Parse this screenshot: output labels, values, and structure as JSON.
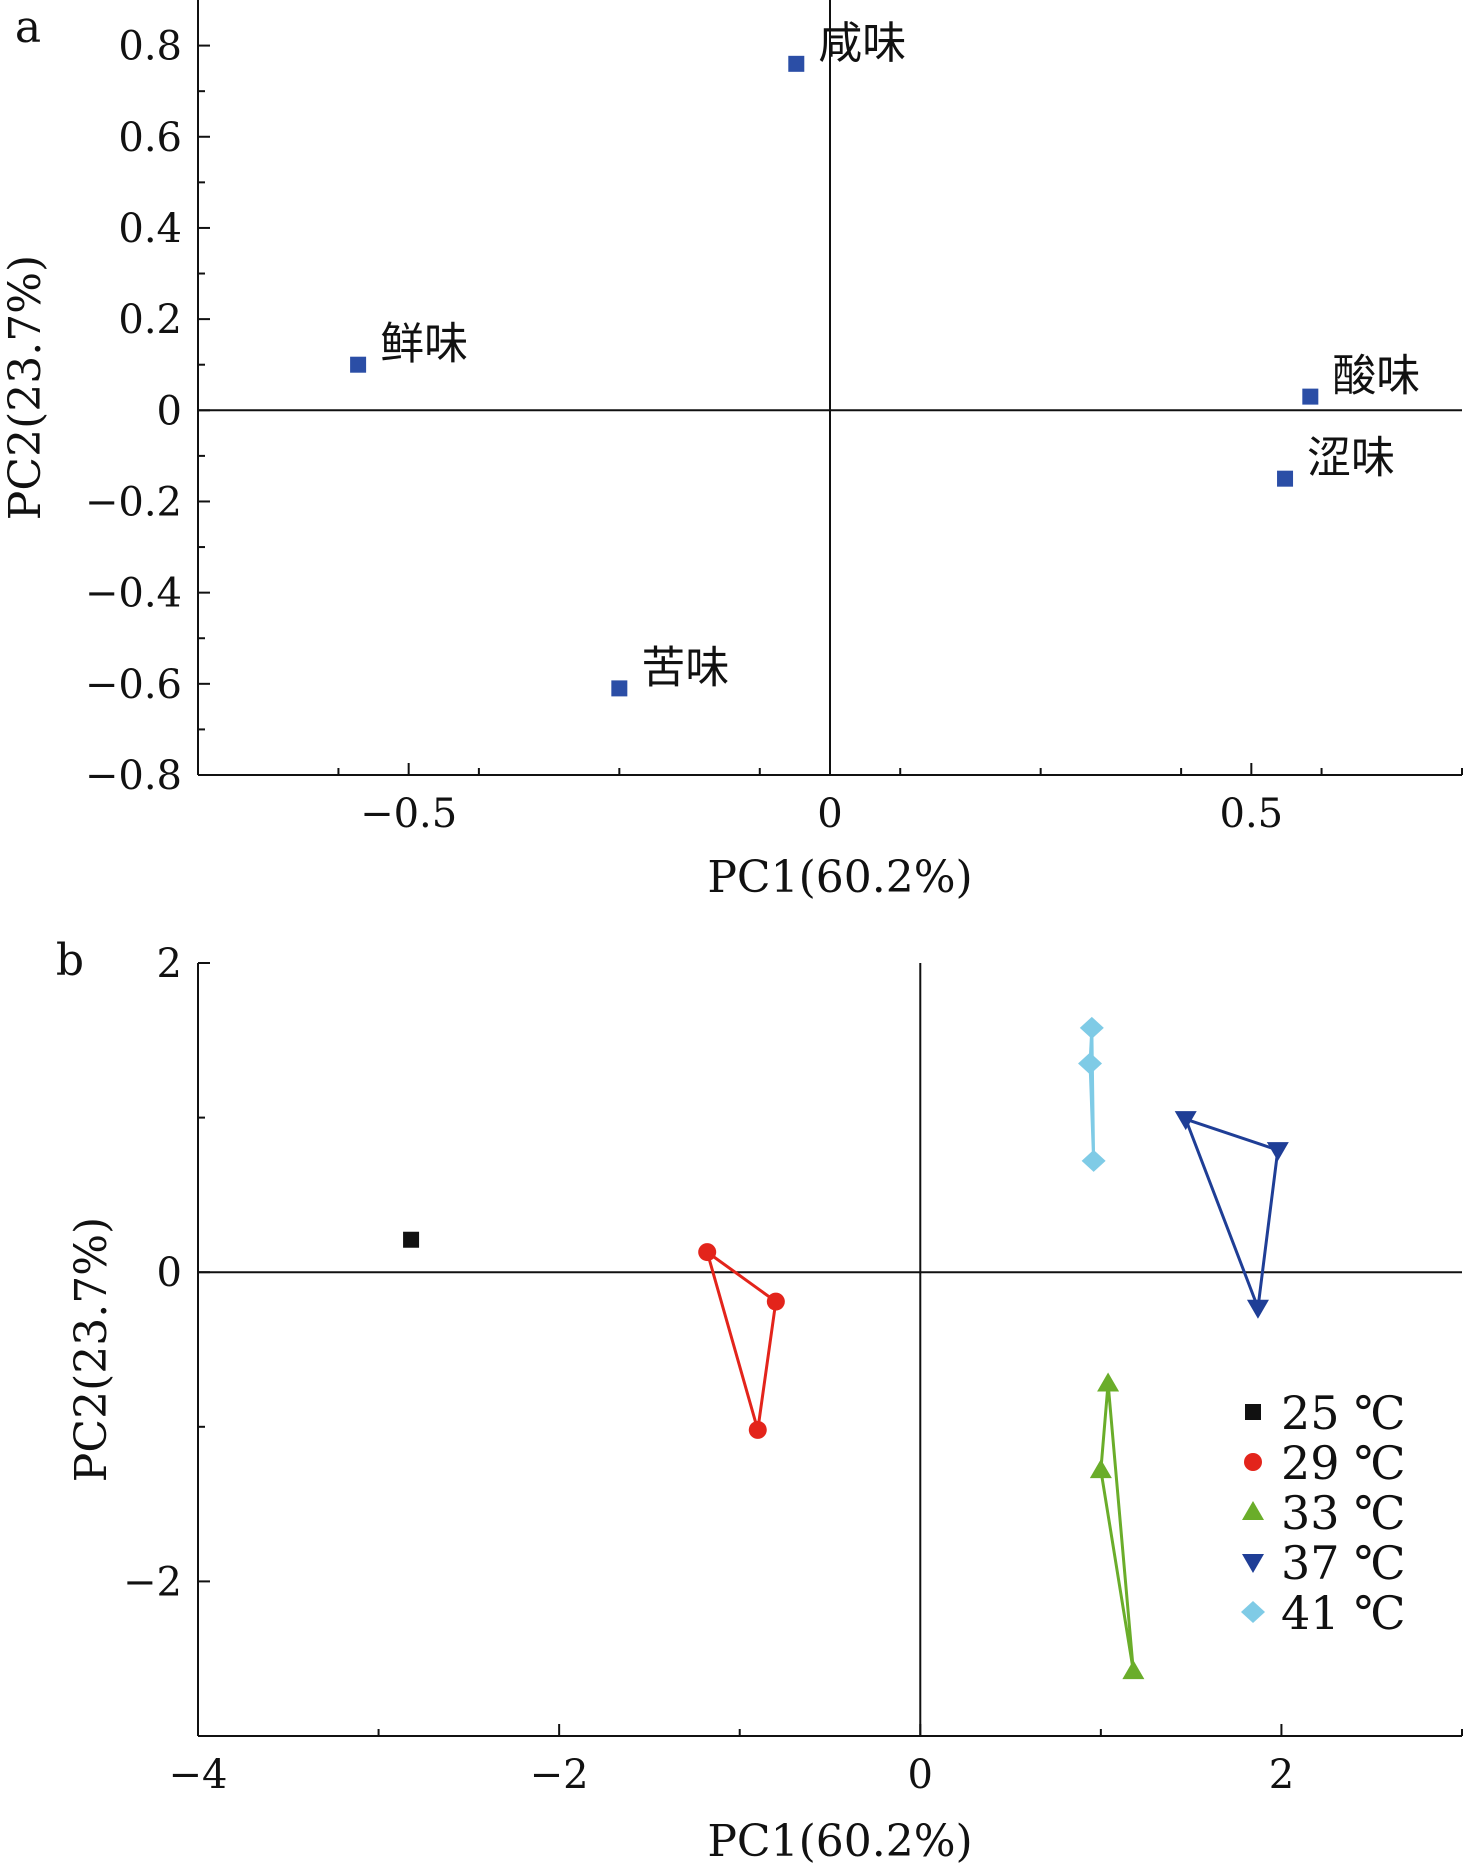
{
  "chart_data": [
    {
      "panel": "a",
      "type": "scatter",
      "xlabel": "PC1(60.2%)",
      "ylabel": "PC2(23.7%)",
      "xlim": [
        -0.75,
        0.75
      ],
      "ylim": [
        -0.8,
        0.9
      ],
      "xticks": [
        -0.5,
        0,
        0.5
      ],
      "xtick_labels": [
        "−0.5",
        "0",
        "0.5"
      ],
      "yticks": [
        -0.8,
        -0.6,
        -0.4,
        -0.2,
        0,
        0.2,
        0.4,
        0.6,
        0.8
      ],
      "ytick_labels": [
        "−0.8",
        "−0.6",
        "−0.4",
        "−0.2",
        "0",
        "0.2",
        "0.4",
        "0.6",
        "0.8"
      ],
      "zero_lines": true,
      "grid": false,
      "marker": "square",
      "color": "#2b4ea6",
      "points": [
        {
          "label": "咸味",
          "x": -0.04,
          "y": 0.76
        },
        {
          "label": "鲜味",
          "x": -0.56,
          "y": 0.1
        },
        {
          "label": "酸味",
          "x": 0.57,
          "y": 0.03
        },
        {
          "label": "涩味",
          "x": 0.54,
          "y": -0.15
        },
        {
          "label": "苦味",
          "x": -0.25,
          "y": -0.61
        }
      ]
    },
    {
      "panel": "b",
      "type": "scatter",
      "xlabel": "PC1(60.2%)",
      "ylabel": "PC2(23.7%)",
      "xlim": [
        -4,
        3
      ],
      "ylim": [
        -3,
        2
      ],
      "xticks": [
        -4,
        -2,
        0,
        2
      ],
      "xtick_labels": [
        "−4",
        "−2",
        "0",
        "2"
      ],
      "yticks": [
        -2,
        0,
        2
      ],
      "ytick_labels": [
        "−2",
        "0",
        "2"
      ],
      "zero_lines": true,
      "grid": false,
      "legend_position": "lower-right",
      "series": [
        {
          "name": "25 ℃",
          "marker": "square",
          "color": "#111111",
          "points": [
            [
              -2.82,
              0.21
            ]
          ]
        },
        {
          "name": "29 ℃",
          "marker": "circle",
          "color": "#e3241b",
          "points": [
            [
              -1.18,
              0.13
            ],
            [
              -0.8,
              -0.19
            ],
            [
              -0.9,
              -1.02
            ]
          ]
        },
        {
          "name": "33 ℃",
          "marker": "triangle-up",
          "color": "#6aad2a",
          "points": [
            [
              1.04,
              -0.72
            ],
            [
              1.0,
              -1.28
            ],
            [
              1.18,
              -2.58
            ]
          ]
        },
        {
          "name": "37 ℃",
          "marker": "triangle-down",
          "color": "#1f3e96",
          "points": [
            [
              1.47,
              0.99
            ],
            [
              1.98,
              0.79
            ],
            [
              1.87,
              -0.23
            ]
          ]
        },
        {
          "name": "41 ℃",
          "marker": "diamond",
          "color": "#7fcbe6",
          "points": [
            [
              0.95,
              1.58
            ],
            [
              0.94,
              1.35
            ],
            [
              0.96,
              0.72
            ]
          ]
        }
      ]
    }
  ]
}
